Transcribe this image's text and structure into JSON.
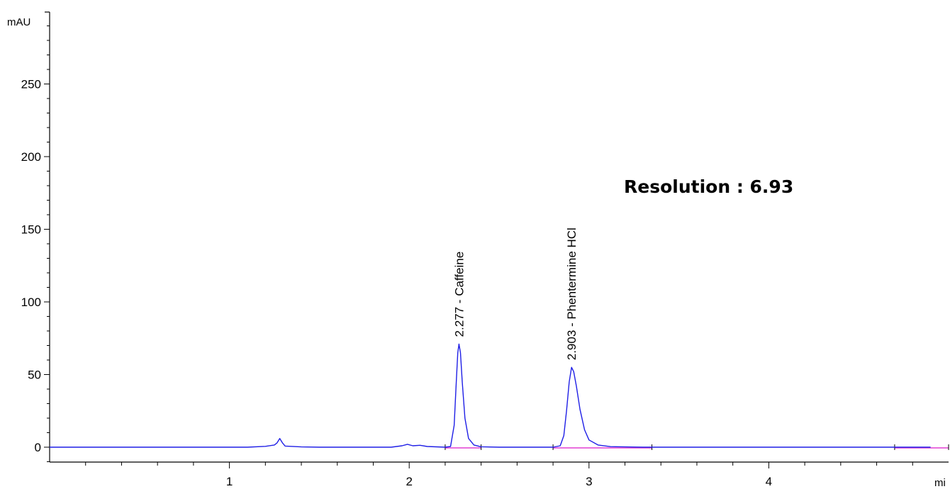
{
  "chart_data": {
    "type": "line",
    "ylabel": "mAU",
    "xlabel": "mi",
    "xlim": [
      0,
      5
    ],
    "ylim": [
      -10,
      300
    ],
    "x_ticks": [
      1,
      2,
      3,
      4
    ],
    "y_ticks": [
      0,
      50,
      100,
      150,
      200,
      250
    ],
    "series": [
      {
        "color": "#1f1fe6",
        "points": [
          [
            0,
            0
          ],
          [
            1.1,
            0
          ],
          [
            1.2,
            0.6
          ],
          [
            1.25,
            1.5
          ],
          [
            1.265,
            3
          ],
          [
            1.28,
            6
          ],
          [
            1.295,
            3
          ],
          [
            1.31,
            0.8
          ],
          [
            1.4,
            0.2
          ],
          [
            1.5,
            0
          ],
          [
            1.9,
            0
          ],
          [
            1.96,
            1
          ],
          [
            1.99,
            2
          ],
          [
            2.02,
            1
          ],
          [
            2.06,
            1.3
          ],
          [
            2.1,
            0.5
          ],
          [
            2.2,
            0
          ],
          [
            2.23,
            0.5
          ],
          [
            2.25,
            15
          ],
          [
            2.262,
            45
          ],
          [
            2.27,
            65
          ],
          [
            2.277,
            71
          ],
          [
            2.285,
            65
          ],
          [
            2.295,
            45
          ],
          [
            2.31,
            20
          ],
          [
            2.33,
            6
          ],
          [
            2.36,
            1.5
          ],
          [
            2.4,
            0.3
          ],
          [
            2.5,
            0
          ],
          [
            2.8,
            0
          ],
          [
            2.84,
            1
          ],
          [
            2.86,
            8
          ],
          [
            2.875,
            25
          ],
          [
            2.89,
            45
          ],
          [
            2.903,
            55
          ],
          [
            2.915,
            52
          ],
          [
            2.93,
            42
          ],
          [
            2.95,
            26
          ],
          [
            2.975,
            12
          ],
          [
            3.0,
            5
          ],
          [
            3.05,
            1.5
          ],
          [
            3.12,
            0.4
          ],
          [
            3.3,
            0
          ],
          [
            4.9,
            0
          ]
        ]
      }
    ],
    "baselines": [
      {
        "color": "#e23fd3",
        "x": [
          2.2,
          2.4
        ]
      },
      {
        "color": "#e23fd3",
        "x": [
          2.8,
          3.35
        ]
      },
      {
        "color": "#e23fd3",
        "x": [
          4.7,
          5.0
        ]
      }
    ],
    "peak_labels": [
      {
        "x": 2.277,
        "y": 71,
        "text": "2.277 -  Caffeine"
      },
      {
        "x": 2.903,
        "y": 55,
        "text": "2.903 -  Phentermine HCl"
      }
    ],
    "annotation": "Resolution : 6.93"
  }
}
